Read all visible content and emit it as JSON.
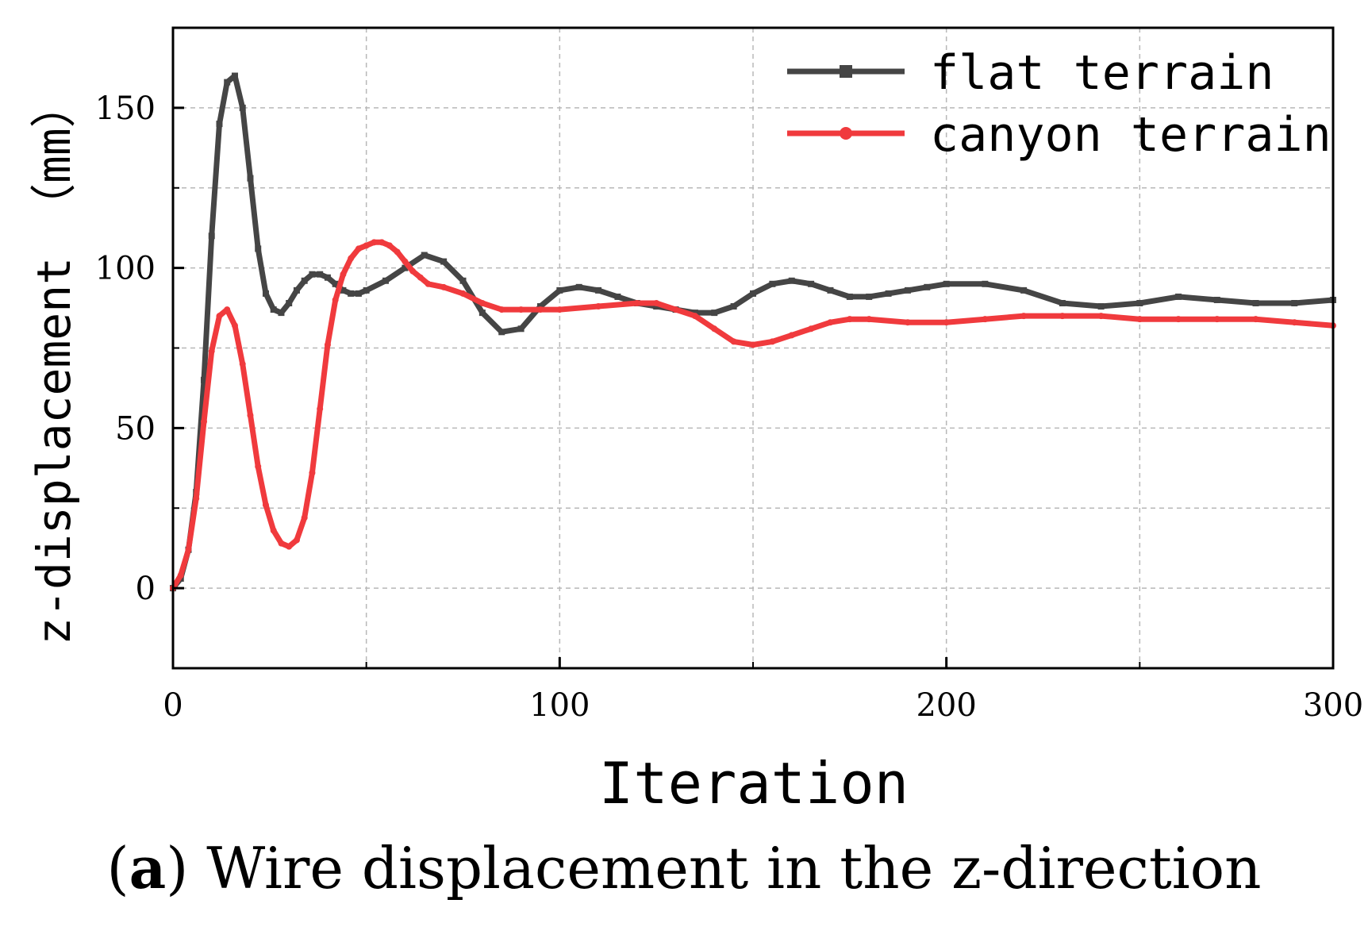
{
  "chart_data": {
    "type": "line",
    "xlabel": "Iteration",
    "ylabel": "z-displacement （mm）",
    "xlim": [
      0,
      300
    ],
    "ylim": [
      -25,
      175
    ],
    "x_ticks": [
      0,
      100,
      200,
      300
    ],
    "x_minor_ticks": [
      50,
      150,
      250
    ],
    "y_ticks": [
      0,
      50,
      100,
      150
    ],
    "y_minor_ticks": [
      25,
      75,
      125
    ],
    "grid": true,
    "legend_position": "top-right",
    "series": [
      {
        "name": "flat terrain",
        "color": "#454545",
        "marker": "square",
        "x": [
          0,
          2,
          4,
          6,
          8,
          10,
          12,
          14,
          16,
          18,
          20,
          22,
          24,
          26,
          28,
          30,
          32,
          34,
          36,
          38,
          40,
          42,
          44,
          46,
          48,
          50,
          55,
          60,
          65,
          70,
          75,
          80,
          85,
          90,
          95,
          100,
          105,
          110,
          115,
          120,
          125,
          130,
          135,
          140,
          145,
          150,
          155,
          160,
          165,
          170,
          175,
          180,
          185,
          190,
          195,
          200,
          210,
          220,
          230,
          240,
          250,
          260,
          270,
          280,
          290,
          300
        ],
        "y": [
          0,
          3,
          12,
          30,
          65,
          110,
          145,
          158,
          160,
          150,
          128,
          106,
          92,
          87,
          86,
          89,
          93,
          96,
          98,
          98,
          97,
          95,
          93,
          92,
          92,
          93,
          96,
          100,
          104,
          102,
          96,
          86,
          80,
          81,
          88,
          93,
          94,
          93,
          91,
          89,
          88,
          87,
          86,
          86,
          88,
          92,
          95,
          96,
          95,
          93,
          91,
          91,
          92,
          93,
          94,
          95,
          95,
          93,
          89,
          88,
          89,
          91,
          90,
          89,
          89,
          90
        ]
      },
      {
        "name": "canyon terrain",
        "color": "#f03a3d",
        "marker": "circle",
        "x": [
          0,
          2,
          4,
          6,
          8,
          10,
          12,
          14,
          16,
          18,
          20,
          22,
          24,
          26,
          28,
          30,
          32,
          34,
          36,
          38,
          40,
          42,
          44,
          46,
          48,
          50,
          52,
          54,
          56,
          58,
          60,
          62,
          64,
          66,
          70,
          75,
          80,
          85,
          90,
          95,
          100,
          110,
          120,
          125,
          130,
          135,
          140,
          145,
          150,
          155,
          160,
          165,
          170,
          175,
          180,
          190,
          200,
          210,
          220,
          230,
          240,
          250,
          260,
          270,
          280,
          290,
          300
        ],
        "y": [
          0,
          4,
          12,
          28,
          52,
          74,
          85,
          87,
          82,
          70,
          54,
          38,
          26,
          18,
          14,
          13,
          15,
          22,
          36,
          56,
          76,
          90,
          98,
          103,
          106,
          107,
          108,
          108,
          107,
          105,
          102,
          99,
          97,
          95,
          94,
          92,
          89,
          87,
          87,
          87,
          87,
          88,
          89,
          89,
          87,
          85,
          81,
          77,
          76,
          77,
          79,
          81,
          83,
          84,
          84,
          83,
          83,
          84,
          85,
          85,
          85,
          84,
          84,
          84,
          84,
          83,
          82
        ]
      }
    ]
  },
  "caption": {
    "open_paren": "(",
    "letter": "a",
    "rest": ") Wire displacement in the z-direction"
  }
}
